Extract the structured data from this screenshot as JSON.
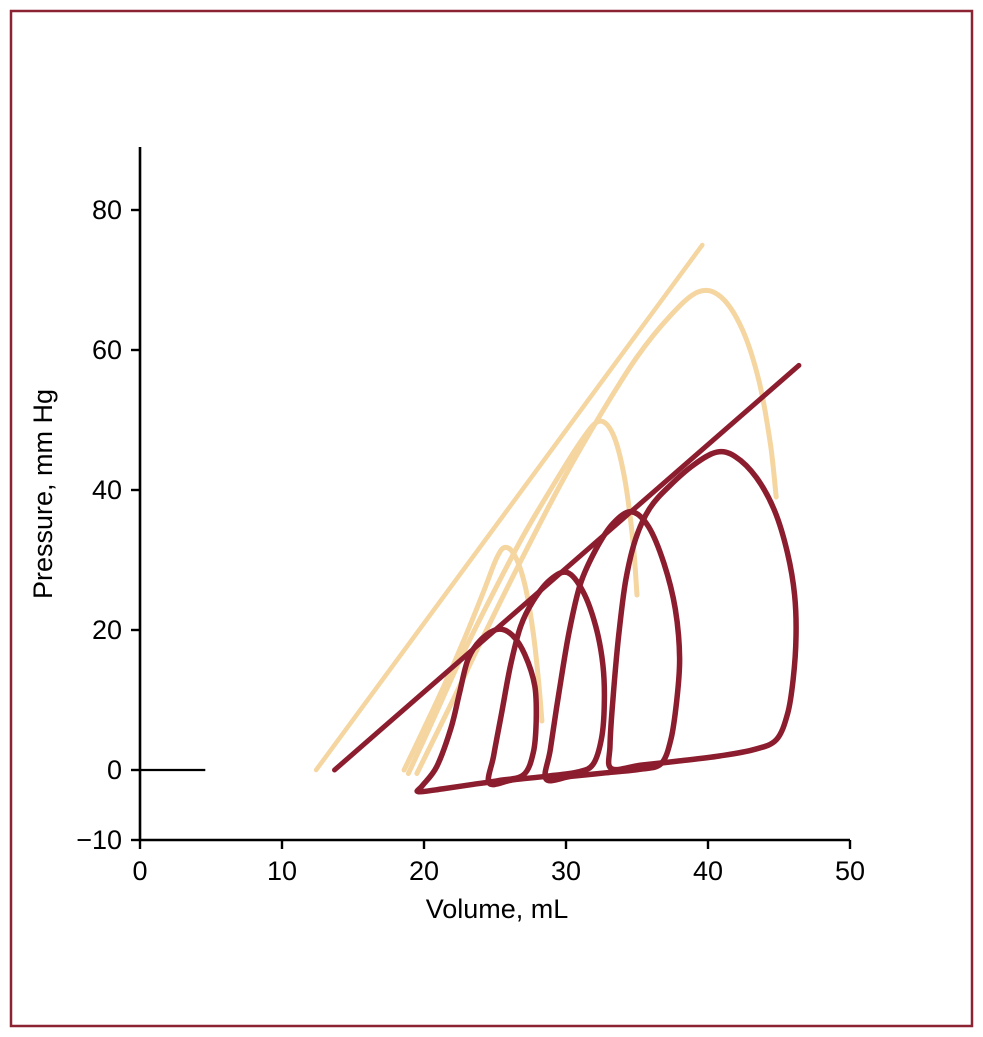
{
  "figure": {
    "border_color": "#8B2332",
    "background": "#FFFFFF"
  },
  "chart_data": {
    "type": "line",
    "title": "",
    "xlabel": "Volume, mL",
    "ylabel": "Pressure, mm Hg",
    "xlim": [
      0,
      50
    ],
    "ylim": [
      -10,
      89
    ],
    "x_ticks": [
      0,
      10,
      20,
      30,
      40,
      50
    ],
    "y_ticks": [
      -10,
      0,
      20,
      40,
      60,
      80
    ],
    "grid": false,
    "legend": "none",
    "palette": {
      "axis": "#000000",
      "light": "#F5D5A0",
      "dark": "#8C1D2E"
    },
    "annotations": [
      {
        "name": "zero-pressure-reference-line",
        "color": "axis",
        "stroke_width": 2.2,
        "points": [
          [
            0,
            0
          ],
          [
            4.6,
            0
          ]
        ]
      }
    ],
    "series": [
      {
        "name": "light-espvr-line",
        "shape": "line",
        "color": "light",
        "stroke_width": 4.5,
        "points": [
          [
            12.4,
            0
          ],
          [
            39.6,
            75
          ]
        ]
      },
      {
        "name": "light-beat-small",
        "shape": "open-curve",
        "color": "light",
        "stroke_width": 5,
        "points": [
          [
            18.6,
            0
          ],
          [
            19.9,
            5.5
          ],
          [
            21.4,
            12
          ],
          [
            22.9,
            19
          ],
          [
            24.2,
            25.5
          ],
          [
            25.1,
            30.2
          ],
          [
            25.7,
            31.8
          ],
          [
            26.4,
            30.6
          ],
          [
            27.1,
            26.5
          ],
          [
            27.7,
            19.5
          ],
          [
            28.1,
            12
          ],
          [
            28.3,
            7
          ]
        ]
      },
      {
        "name": "light-beat-medium",
        "shape": "open-curve",
        "color": "light",
        "stroke_width": 5,
        "points": [
          [
            18.9,
            -0.5
          ],
          [
            20.6,
            7
          ],
          [
            22.6,
            16
          ],
          [
            24.8,
            25
          ],
          [
            27.0,
            33.5
          ],
          [
            29.2,
            41
          ],
          [
            31.0,
            46.8
          ],
          [
            32.3,
            49.8
          ],
          [
            33.3,
            48
          ],
          [
            34.1,
            42
          ],
          [
            34.7,
            33
          ],
          [
            35.0,
            25
          ]
        ]
      },
      {
        "name": "light-beat-large",
        "shape": "open-curve",
        "color": "light",
        "stroke_width": 5,
        "points": [
          [
            19.5,
            -0.5
          ],
          [
            21.8,
            9
          ],
          [
            24.4,
            20
          ],
          [
            27.1,
            31
          ],
          [
            29.8,
            41.5
          ],
          [
            32.5,
            51
          ],
          [
            35.0,
            59
          ],
          [
            37.3,
            64.8
          ],
          [
            39.3,
            68.3
          ],
          [
            40.9,
            67.6
          ],
          [
            42.4,
            63
          ],
          [
            43.6,
            55.5
          ],
          [
            44.4,
            46.5
          ],
          [
            44.8,
            39
          ]
        ]
      },
      {
        "name": "dark-espvr-line",
        "shape": "line",
        "color": "dark",
        "stroke_width": 5,
        "points": [
          [
            13.7,
            0
          ],
          [
            46.4,
            57.8
          ]
        ]
      },
      {
        "name": "dark-loop-1",
        "shape": "closed-loop",
        "color": "dark",
        "stroke_width": 5.5,
        "points": [
          [
            19.6,
            -3.1
          ],
          [
            21.3,
            -2.7
          ],
          [
            23.3,
            -2.1
          ],
          [
            25.3,
            -1.5
          ],
          [
            27.0,
            -0.7
          ],
          [
            27.7,
            2.5
          ],
          [
            27.9,
            7
          ],
          [
            27.8,
            12
          ],
          [
            27.1,
            16.5
          ],
          [
            26.2,
            19.3
          ],
          [
            25.2,
            20.1
          ],
          [
            24.0,
            18.6
          ],
          [
            23.1,
            15.8
          ],
          [
            22.5,
            11
          ],
          [
            21.9,
            6
          ],
          [
            20.9,
            0.5
          ],
          [
            19.9,
            -2.2
          ]
        ]
      },
      {
        "name": "dark-loop-2",
        "shape": "closed-loop",
        "color": "dark",
        "stroke_width": 5.5,
        "points": [
          [
            24.6,
            -1.9
          ],
          [
            26.3,
            -1.4
          ],
          [
            28.6,
            -0.9
          ],
          [
            30.8,
            -0.3
          ],
          [
            31.9,
            0.8
          ],
          [
            32.5,
            4.5
          ],
          [
            32.7,
            9.5
          ],
          [
            32.6,
            15
          ],
          [
            32.1,
            20.5
          ],
          [
            31.2,
            25.5
          ],
          [
            30.1,
            28.2
          ],
          [
            28.9,
            27.2
          ],
          [
            27.7,
            24.2
          ],
          [
            26.8,
            20.5
          ],
          [
            26.1,
            15
          ],
          [
            25.5,
            8.5
          ],
          [
            24.9,
            2
          ]
        ]
      },
      {
        "name": "dark-loop-3",
        "shape": "closed-loop",
        "color": "dark",
        "stroke_width": 5.5,
        "points": [
          [
            28.6,
            -1.3
          ],
          [
            30.4,
            -0.9
          ],
          [
            32.8,
            -0.4
          ],
          [
            35.2,
            0.1
          ],
          [
            36.7,
            0.9
          ],
          [
            37.4,
            4.5
          ],
          [
            37.8,
            10
          ],
          [
            38.0,
            16
          ],
          [
            37.7,
            23
          ],
          [
            36.9,
            29.5
          ],
          [
            35.8,
            34.8
          ],
          [
            34.6,
            36.9
          ],
          [
            33.3,
            35.2
          ],
          [
            32.1,
            31.5
          ],
          [
            31.0,
            26.5
          ],
          [
            30.2,
            19.5
          ],
          [
            29.5,
            11
          ],
          [
            28.9,
            3
          ]
        ]
      },
      {
        "name": "dark-loop-4",
        "shape": "closed-loop",
        "color": "dark",
        "stroke_width": 5.5,
        "points": [
          [
            33.2,
            0.2
          ],
          [
            35.3,
            0.7
          ],
          [
            38.0,
            1.3
          ],
          [
            40.8,
            2.0
          ],
          [
            43.2,
            2.9
          ],
          [
            44.8,
            4.3
          ],
          [
            45.6,
            8
          ],
          [
            46.0,
            13
          ],
          [
            46.2,
            19
          ],
          [
            46.1,
            25
          ],
          [
            45.6,
            31
          ],
          [
            44.7,
            37
          ],
          [
            43.4,
            41.8
          ],
          [
            41.9,
            44.8
          ],
          [
            40.6,
            45.4
          ],
          [
            39.0,
            43.6
          ],
          [
            37.3,
            40.6
          ],
          [
            35.9,
            37.4
          ],
          [
            34.9,
            33
          ],
          [
            34.2,
            27
          ],
          [
            33.7,
            19
          ],
          [
            33.3,
            10
          ],
          [
            33.1,
            3.5
          ]
        ]
      }
    ]
  }
}
